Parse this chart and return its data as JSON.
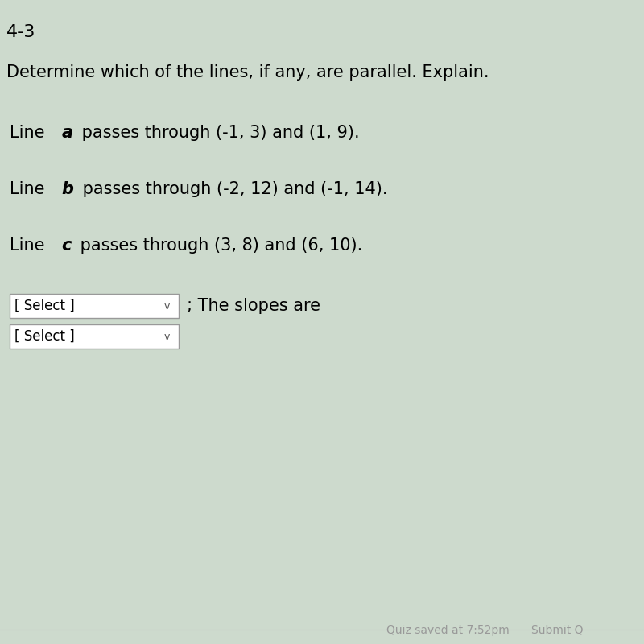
{
  "background_color": "#cddacd",
  "section_label": "4-3",
  "section_label_fontsize": 16,
  "title": "Determine which of the lines, if any, are parallel. Explain.",
  "title_fontsize": 15,
  "lines": [
    {
      "prefix": "Line ",
      "bold_letter": "a",
      "suffix": " passes through (-1, 3) and (1, 9)."
    },
    {
      "prefix": "Line ",
      "bold_letter": "b",
      "suffix": " passes through (-2, 12) and (-1, 14)."
    },
    {
      "prefix": "Line ",
      "bold_letter": "c",
      "suffix": " passes through (3, 8) and (6, 10)."
    }
  ],
  "line_fontsize": 15,
  "dropdown_text": "[ Select ]",
  "dropdown_fontsize": 12,
  "dropdown_box_color": "white",
  "dropdown_border_color": "#999999",
  "connector_text": "; The slopes are",
  "connector_fontsize": 15,
  "footer_text1": "Quiz saved at 7:52pm",
  "footer_text2": "Submit Q",
  "footer_fontsize": 10,
  "footer_color": "#999999"
}
